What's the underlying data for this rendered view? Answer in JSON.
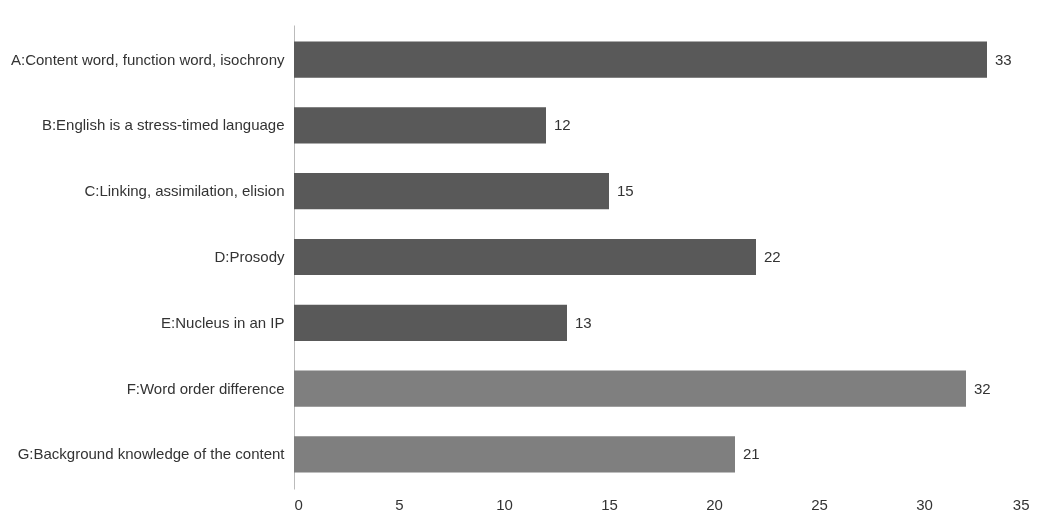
{
  "chart_data": {
    "type": "bar",
    "orientation": "horizontal",
    "categories": [
      "A:Content word, function word, isochrony",
      "B:English is a stress-timed language",
      "C:Linking, assimilation, elision",
      "D:Prosody",
      "E:Nucleus in an IP",
      "F:Word order difference",
      "G:Background knowledge of the content"
    ],
    "values": [
      33,
      12,
      15,
      22,
      13,
      32,
      21
    ],
    "colors": [
      "#595959",
      "#595959",
      "#595959",
      "#595959",
      "#595959",
      "#7f7f7f",
      "#7f7f7f"
    ],
    "xlim": [
      0,
      35
    ],
    "xticks": [
      0,
      5,
      10,
      15,
      20,
      25,
      30,
      35
    ],
    "grid": false,
    "data_labels": true
  }
}
